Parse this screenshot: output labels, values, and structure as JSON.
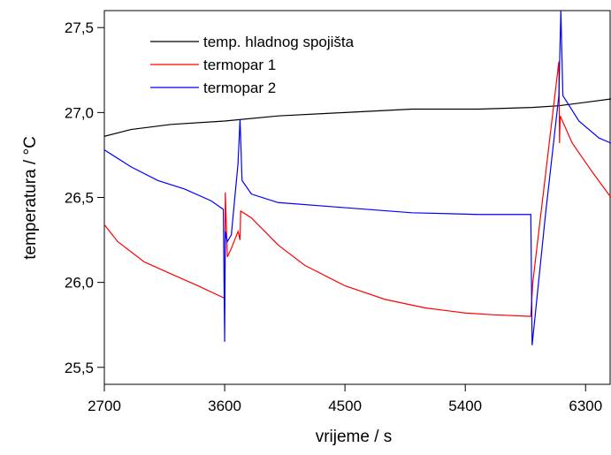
{
  "chart_data": {
    "type": "line",
    "x_label": "vrijeme / s",
    "y_label": "temperatura / °C",
    "xlim": [
      2700,
      6490
    ],
    "ylim": [
      25.4,
      27.6
    ],
    "xticks": [
      2700,
      3600,
      4500,
      5400,
      6300
    ],
    "yticks": [
      {
        "value": 25.5,
        "label": "25,5"
      },
      {
        "value": 26.0,
        "label": "26,0"
      },
      {
        "value": 26.5,
        "label": "26,5"
      },
      {
        "value": 27.0,
        "label": "27,0"
      },
      {
        "value": 27.5,
        "label": "27,5"
      }
    ],
    "legend": "top-left",
    "series": [
      {
        "name": "temp. hladnog spojišta",
        "color": "#000000",
        "x": [
          2700,
          2900,
          3200,
          3600,
          4000,
          4500,
          5000,
          5500,
          5900,
          6100,
          6300,
          6490
        ],
        "values": [
          26.86,
          26.9,
          26.93,
          26.95,
          26.98,
          27.0,
          27.02,
          27.02,
          27.03,
          27.04,
          27.06,
          27.08
        ]
      },
      {
        "name": "termopar 1",
        "color": "#ff0000",
        "x": [
          2700,
          2800,
          3000,
          3200,
          3400,
          3590,
          3600,
          3605,
          3620,
          3650,
          3700,
          3715,
          3720,
          3800,
          4000,
          4200,
          4500,
          4800,
          5100,
          5400,
          5600,
          5890,
          5905,
          6100,
          6105,
          6110,
          6200,
          6350,
          6490
        ],
        "values": [
          26.34,
          26.24,
          26.12,
          26.05,
          25.98,
          25.91,
          25.92,
          26.53,
          26.15,
          26.2,
          26.3,
          26.25,
          26.42,
          26.38,
          26.22,
          26.1,
          25.98,
          25.9,
          25.85,
          25.82,
          25.81,
          25.8,
          26.0,
          27.3,
          26.82,
          26.98,
          26.82,
          26.65,
          26.5
        ]
      },
      {
        "name": "termopar 2",
        "color": "#0000ff",
        "x": [
          2700,
          2900,
          3100,
          3300,
          3500,
          3590,
          3600,
          3605,
          3620,
          3650,
          3700,
          3715,
          3730,
          3800,
          4000,
          4500,
          5000,
          5500,
          5890,
          5900,
          6000,
          6100,
          6115,
          6130,
          6250,
          6400,
          6490
        ],
        "values": [
          26.78,
          26.68,
          26.6,
          26.55,
          26.48,
          26.43,
          25.65,
          26.3,
          26.24,
          26.28,
          26.7,
          26.96,
          26.6,
          26.52,
          26.47,
          26.44,
          26.41,
          26.4,
          26.4,
          25.63,
          26.4,
          27.1,
          27.6,
          27.1,
          26.95,
          26.85,
          26.82
        ]
      }
    ]
  }
}
